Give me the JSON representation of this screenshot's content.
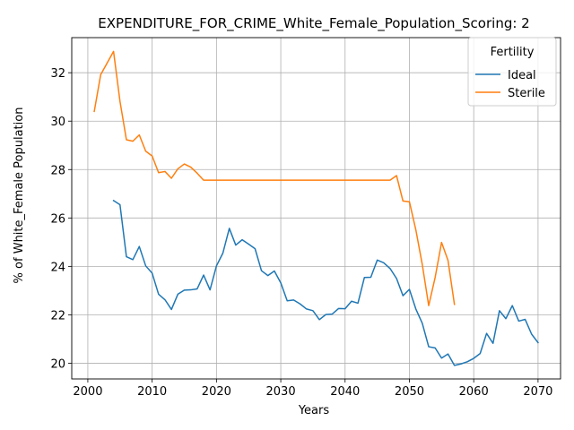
{
  "chart_data": {
    "type": "line",
    "title": "EXPENDITURE_FOR_CRIME_White_Female_Population_Scoring: 2",
    "xlabel": "Years",
    "ylabel": "% of White_Female Population",
    "xlim": [
      1997.5,
      2073.5
    ],
    "ylim": [
      19.35,
      33.45
    ],
    "xticks": [
      2000,
      2010,
      2020,
      2030,
      2040,
      2050,
      2060,
      2070
    ],
    "yticks": [
      20,
      22,
      24,
      26,
      28,
      30,
      32
    ],
    "grid": true,
    "legend": {
      "title": "Fertility",
      "position": "top-right"
    },
    "series": [
      {
        "name": "Ideal",
        "color": "#1f77b4",
        "x": [
          2004,
          2005,
          2006,
          2007,
          2008,
          2009,
          2010,
          2011,
          2012,
          2013,
          2014,
          2015,
          2016,
          2017,
          2018,
          2019,
          2020,
          2021,
          2022,
          2023,
          2024,
          2025,
          2026,
          2027,
          2028,
          2029,
          2030,
          2031,
          2032,
          2033,
          2034,
          2035,
          2036,
          2037,
          2038,
          2039,
          2040,
          2041,
          2042,
          2043,
          2044,
          2045,
          2046,
          2047,
          2048,
          2049,
          2050,
          2051,
          2052,
          2053,
          2054,
          2055,
          2056,
          2057,
          2058,
          2059,
          2060,
          2061,
          2062,
          2063,
          2064,
          2065,
          2066,
          2067,
          2068,
          2069,
          2070
        ],
        "y": [
          26.72,
          26.55,
          24.4,
          24.28,
          24.82,
          24.02,
          23.72,
          22.85,
          22.62,
          22.22,
          22.85,
          23.02,
          23.03,
          23.07,
          23.64,
          23.03,
          24.02,
          24.55,
          25.57,
          24.88,
          25.1,
          24.92,
          24.73,
          23.82,
          23.62,
          23.81,
          23.32,
          22.58,
          22.61,
          22.45,
          22.24,
          22.17,
          21.8,
          22.01,
          22.03,
          22.26,
          22.25,
          22.56,
          22.48,
          23.54,
          23.55,
          24.26,
          24.15,
          23.91,
          23.5,
          22.79,
          23.05,
          22.24,
          21.65,
          20.68,
          20.63,
          20.21,
          20.38,
          19.91,
          19.97,
          20.06,
          20.2,
          20.4,
          21.23,
          20.82,
          22.17,
          21.84,
          22.38,
          21.74,
          21.81,
          21.2,
          20.85
        ]
      },
      {
        "name": "Sterile",
        "color": "#ff7f0e",
        "x": [
          2001,
          2002,
          2003,
          2004,
          2005,
          2006,
          2007,
          2008,
          2009,
          2010,
          2011,
          2012,
          2013,
          2014,
          2015,
          2016,
          2017,
          2018,
          2019,
          2020,
          2021,
          2022,
          2023,
          2024,
          2025,
          2026,
          2027,
          2028,
          2029,
          2030,
          2031,
          2032,
          2033,
          2034,
          2035,
          2036,
          2037,
          2038,
          2039,
          2040,
          2041,
          2042,
          2043,
          2044,
          2045,
          2046,
          2047,
          2048,
          2049,
          2050,
          2051,
          2052,
          2053,
          2054,
          2055,
          2056,
          2057
        ],
        "y": [
          30.4,
          31.92,
          32.4,
          32.88,
          30.82,
          29.23,
          29.17,
          29.43,
          28.76,
          28.56,
          27.87,
          27.92,
          27.64,
          28.03,
          28.23,
          28.1,
          27.85,
          27.56,
          27.56,
          27.56,
          27.56,
          27.56,
          27.56,
          27.56,
          27.56,
          27.56,
          27.56,
          27.56,
          27.56,
          27.56,
          27.56,
          27.56,
          27.56,
          27.56,
          27.56,
          27.56,
          27.56,
          27.56,
          27.56,
          27.56,
          27.56,
          27.56,
          27.56,
          27.56,
          27.56,
          27.56,
          27.56,
          27.75,
          26.7,
          26.67,
          25.51,
          24.08,
          22.38,
          23.54,
          24.99,
          24.25,
          22.43
        ]
      }
    ]
  }
}
